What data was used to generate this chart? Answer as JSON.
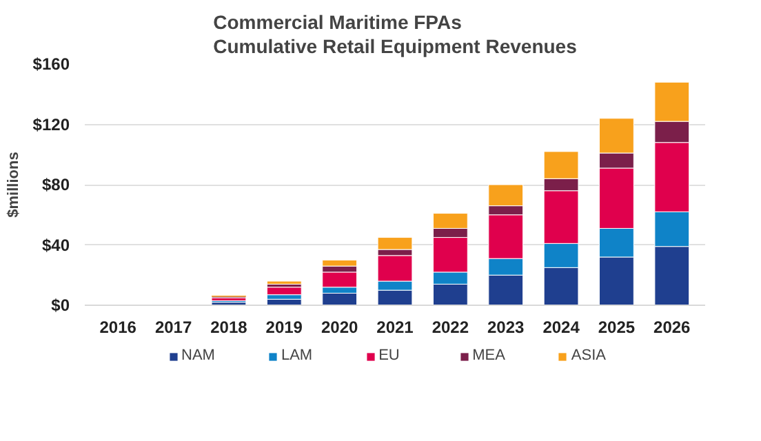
{
  "chart_data": {
    "type": "bar",
    "stacked": true,
    "title": "Commercial Maritime FPAs\nCumulative Retail Equipment Revenues",
    "ylabel": "$millions",
    "categories": [
      "2016",
      "2017",
      "2018",
      "2019",
      "2020",
      "2021",
      "2022",
      "2023",
      "2024",
      "2025",
      "2026"
    ],
    "series": [
      {
        "name": "NAM",
        "color": "#1f3f8f",
        "values": [
          0,
          0,
          2,
          4,
          8,
          10,
          14,
          20,
          25,
          32,
          39
        ]
      },
      {
        "name": "LAM",
        "color": "#0f83c8",
        "values": [
          0,
          0,
          1,
          3,
          4,
          6,
          8,
          11,
          16,
          19,
          23
        ]
      },
      {
        "name": "EU",
        "color": "#e0004d",
        "values": [
          0,
          0,
          2,
          5,
          10,
          17,
          23,
          29,
          35,
          40,
          46
        ]
      },
      {
        "name": "MEA",
        "color": "#7b1f4a",
        "values": [
          0,
          0,
          1,
          2,
          4,
          4,
          6,
          6,
          8,
          10,
          14
        ]
      },
      {
        "name": "ASIA",
        "color": "#f8a11c",
        "values": [
          0,
          0,
          0,
          2,
          4,
          8,
          10,
          14,
          18,
          23,
          26
        ]
      }
    ],
    "ylim": [
      0,
      160
    ],
    "yticks": [
      {
        "value": 0,
        "label": "$0"
      },
      {
        "value": 40,
        "label": "$40"
      },
      {
        "value": 80,
        "label": "$80"
      },
      {
        "value": 120,
        "label": "$120"
      },
      {
        "value": 160,
        "label": "$160"
      }
    ],
    "grid": "y",
    "legend": "bottom"
  }
}
